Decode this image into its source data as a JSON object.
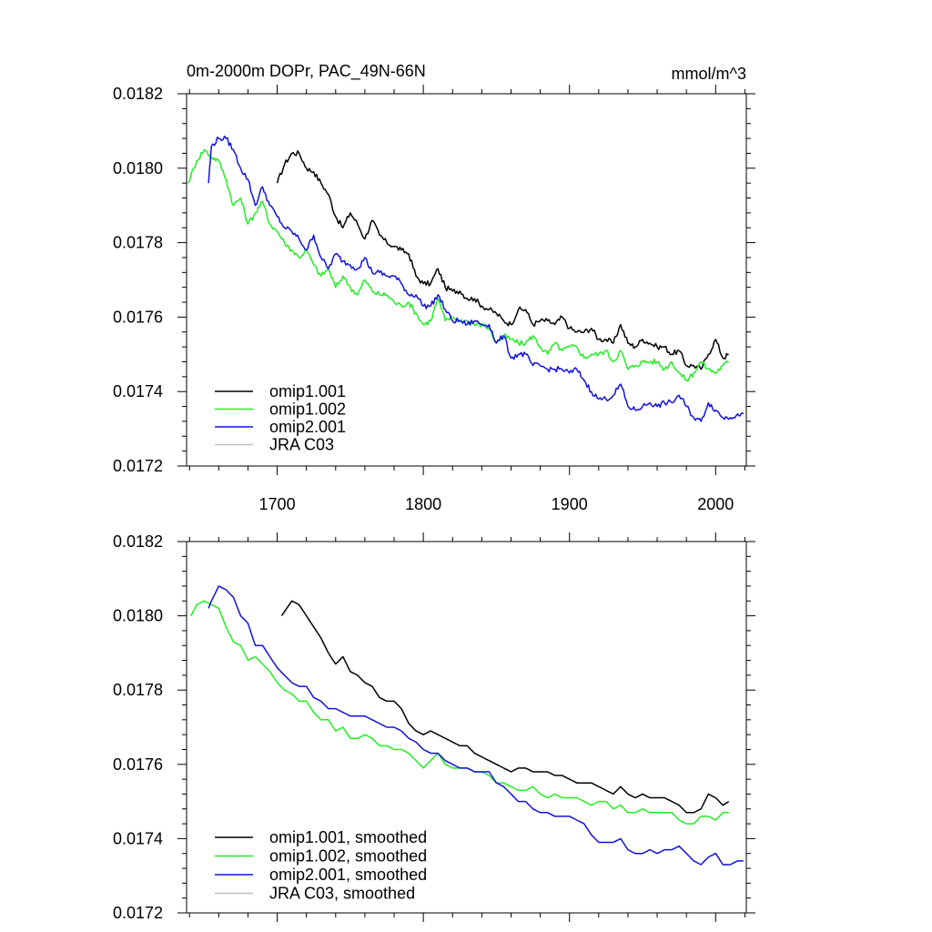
{
  "header": {
    "title": "0m-2000m DOPr, PAC_49N-66N",
    "units": "mmol/m^3"
  },
  "colors": {
    "omip1_001": "#000000",
    "omip1_002": "#22ee22",
    "omip2_001": "#1111dd",
    "jra_c03": "#c0c0c0"
  },
  "chart_data": [
    {
      "type": "line",
      "title": "0m-2000m DOPr, PAC_49N-66N",
      "xlabel": "",
      "ylabel": "",
      "xlim": [
        1638,
        2021
      ],
      "ylim": [
        0.0172,
        0.0182
      ],
      "x_ticks": [
        1700,
        1800,
        1900,
        2000
      ],
      "y_ticks": [
        "0.0172",
        "0.0174",
        "0.0176",
        "0.0178",
        "0.0180",
        "0.0182"
      ],
      "legend_position": "bottom-left",
      "legend": [
        "omip1.001",
        "omip1.002",
        "omip2.001",
        "JRA C03"
      ],
      "series": [
        {
          "name": "omip1.001",
          "color": "#000000",
          "noise": 7.5e-06,
          "x": [
            1700,
            1705,
            1710,
            1715,
            1720,
            1725,
            1730,
            1735,
            1740,
            1745,
            1750,
            1755,
            1760,
            1765,
            1770,
            1775,
            1780,
            1785,
            1790,
            1795,
            1800,
            1805,
            1810,
            1815,
            1820,
            1825,
            1830,
            1835,
            1840,
            1845,
            1850,
            1855,
            1860,
            1865,
            1870,
            1875,
            1880,
            1885,
            1890,
            1895,
            1900,
            1905,
            1910,
            1915,
            1920,
            1925,
            1930,
            1935,
            1940,
            1945,
            1950,
            1955,
            1960,
            1965,
            1970,
            1975,
            1980,
            1985,
            1990,
            1995,
            2000,
            2005,
            2009
          ],
          "y": [
            0.01796,
            0.01801,
            0.01804,
            0.01804,
            0.018,
            0.01799,
            0.01796,
            0.01793,
            0.01787,
            0.01784,
            0.01788,
            0.01785,
            0.01781,
            0.01786,
            0.01782,
            0.0178,
            0.01779,
            0.01778,
            0.01777,
            0.01771,
            0.01769,
            0.01769,
            0.01773,
            0.01768,
            0.01767,
            0.01767,
            0.01765,
            0.01765,
            0.01763,
            0.01762,
            0.01761,
            0.01759,
            0.01758,
            0.01762,
            0.01762,
            0.01758,
            0.01759,
            0.01759,
            0.01758,
            0.0176,
            0.01757,
            0.01756,
            0.01756,
            0.01757,
            0.01754,
            0.01754,
            0.01753,
            0.01758,
            0.01753,
            0.01752,
            0.01754,
            0.01753,
            0.01752,
            0.01752,
            0.0175,
            0.01751,
            0.01747,
            0.01747,
            0.01746,
            0.0175,
            0.01754,
            0.01749,
            0.0175
          ]
        },
        {
          "name": "omip1.002",
          "color": "#22ee22",
          "noise": 7.5e-06,
          "x": [
            1639,
            1645,
            1650,
            1655,
            1660,
            1665,
            1670,
            1675,
            1680,
            1685,
            1690,
            1695,
            1700,
            1705,
            1710,
            1715,
            1720,
            1725,
            1730,
            1735,
            1740,
            1745,
            1750,
            1755,
            1760,
            1765,
            1770,
            1775,
            1780,
            1785,
            1790,
            1795,
            1800,
            1805,
            1810,
            1815,
            1820,
            1825,
            1830,
            1835,
            1840,
            1845,
            1850,
            1855,
            1860,
            1865,
            1870,
            1875,
            1880,
            1885,
            1890,
            1895,
            1900,
            1905,
            1910,
            1915,
            1920,
            1925,
            1930,
            1935,
            1940,
            1945,
            1950,
            1955,
            1960,
            1965,
            1970,
            1975,
            1980,
            1985,
            1990,
            1995,
            2000,
            2005,
            2009
          ],
          "y": [
            0.01796,
            0.01802,
            0.01805,
            0.01803,
            0.01802,
            0.01797,
            0.0179,
            0.01792,
            0.01785,
            0.01788,
            0.01791,
            0.01785,
            0.01783,
            0.0178,
            0.01778,
            0.01776,
            0.01778,
            0.01774,
            0.01771,
            0.01773,
            0.01768,
            0.01771,
            0.01768,
            0.01766,
            0.0177,
            0.01767,
            0.01766,
            0.01766,
            0.01764,
            0.01763,
            0.01764,
            0.01761,
            0.01758,
            0.01759,
            0.01765,
            0.01759,
            0.0176,
            0.01759,
            0.01759,
            0.01758,
            0.01758,
            0.01757,
            0.01753,
            0.01755,
            0.01754,
            0.01753,
            0.01753,
            0.01755,
            0.01752,
            0.0175,
            0.01753,
            0.01751,
            0.01752,
            0.01752,
            0.01749,
            0.0175,
            0.0175,
            0.01751,
            0.01748,
            0.01751,
            0.01746,
            0.01747,
            0.01748,
            0.01748,
            0.01748,
            0.01746,
            0.01748,
            0.01745,
            0.01743,
            0.01745,
            0.01748,
            0.01746,
            0.01745,
            0.01747,
            0.01748
          ]
        },
        {
          "name": "omip2.001",
          "color": "#1111dd",
          "noise": 7.5e-06,
          "x": [
            1653,
            1655,
            1660,
            1665,
            1670,
            1675,
            1680,
            1685,
            1690,
            1695,
            1700,
            1705,
            1710,
            1715,
            1720,
            1725,
            1730,
            1735,
            1740,
            1745,
            1750,
            1755,
            1760,
            1765,
            1770,
            1775,
            1780,
            1785,
            1790,
            1795,
            1800,
            1805,
            1810,
            1815,
            1820,
            1825,
            1830,
            1835,
            1840,
            1845,
            1850,
            1855,
            1860,
            1865,
            1870,
            1875,
            1880,
            1885,
            1890,
            1895,
            1900,
            1905,
            1910,
            1915,
            1920,
            1925,
            1930,
            1935,
            1940,
            1945,
            1950,
            1955,
            1960,
            1965,
            1970,
            1975,
            1980,
            1985,
            1990,
            1995,
            2000,
            2005,
            2010,
            2015,
            2019
          ],
          "y": [
            0.01796,
            0.01806,
            0.01808,
            0.01808,
            0.01805,
            0.018,
            0.01797,
            0.0179,
            0.01795,
            0.0179,
            0.01787,
            0.01784,
            0.01783,
            0.01781,
            0.01778,
            0.01782,
            0.01776,
            0.01773,
            0.01777,
            0.01775,
            0.01774,
            0.01773,
            0.01776,
            0.01772,
            0.01772,
            0.01771,
            0.01771,
            0.01769,
            0.01766,
            0.01766,
            0.01763,
            0.01763,
            0.01766,
            0.01762,
            0.01759,
            0.01759,
            0.01758,
            0.01759,
            0.01758,
            0.01758,
            0.01753,
            0.01755,
            0.01749,
            0.0175,
            0.0175,
            0.01747,
            0.01747,
            0.01746,
            0.01746,
            0.01746,
            0.01745,
            0.01746,
            0.01743,
            0.0174,
            0.01738,
            0.01738,
            0.01739,
            0.01742,
            0.01736,
            0.01735,
            0.01736,
            0.01737,
            0.01736,
            0.01737,
            0.01737,
            0.01739,
            0.01736,
            0.01733,
            0.01732,
            0.01737,
            0.01735,
            0.01733,
            0.01733,
            0.01734,
            0.01734
          ]
        }
      ]
    },
    {
      "type": "line",
      "title": "",
      "xlabel": "",
      "ylabel": "",
      "xlim": [
        1638,
        2021
      ],
      "ylim": [
        0.0172,
        0.0182
      ],
      "x_ticks": [
        1700,
        1800,
        1900,
        2000
      ],
      "y_ticks": [
        "0.0172",
        "0.0174",
        "0.0176",
        "0.0178",
        "0.0180",
        "0.0182"
      ],
      "legend_position": "bottom-left",
      "legend": [
        "omip1.001, smoothed",
        "omip1.002, smoothed",
        "omip2.001, smoothed",
        "JRA C03, smoothed"
      ],
      "series": [
        {
          "name": "omip1.001, smoothed",
          "color": "#000000",
          "noise": 0,
          "x": [
            1703,
            1710,
            1715,
            1720,
            1725,
            1730,
            1735,
            1740,
            1745,
            1750,
            1755,
            1760,
            1765,
            1770,
            1775,
            1780,
            1785,
            1790,
            1795,
            1800,
            1805,
            1810,
            1815,
            1820,
            1825,
            1830,
            1835,
            1840,
            1845,
            1850,
            1855,
            1860,
            1865,
            1870,
            1875,
            1880,
            1885,
            1890,
            1895,
            1900,
            1905,
            1910,
            1915,
            1920,
            1925,
            1930,
            1935,
            1940,
            1945,
            1950,
            1955,
            1960,
            1965,
            1970,
            1975,
            1980,
            1985,
            1990,
            1995,
            2000,
            2005,
            2009
          ],
          "y": [
            0.018,
            0.01804,
            0.01803,
            0.018,
            0.01797,
            0.01794,
            0.0179,
            0.01787,
            0.01789,
            0.01785,
            0.01784,
            0.01782,
            0.01781,
            0.01778,
            0.01777,
            0.01777,
            0.01775,
            0.01771,
            0.01769,
            0.01768,
            0.01769,
            0.01768,
            0.01767,
            0.01766,
            0.01765,
            0.01765,
            0.01763,
            0.01762,
            0.01761,
            0.0176,
            0.01759,
            0.01758,
            0.01759,
            0.01759,
            0.01758,
            0.01758,
            0.01758,
            0.01757,
            0.01757,
            0.01756,
            0.01755,
            0.01755,
            0.01755,
            0.01754,
            0.01753,
            0.01752,
            0.01754,
            0.01752,
            0.01751,
            0.01752,
            0.01751,
            0.01751,
            0.01751,
            0.0175,
            0.01749,
            0.01747,
            0.01747,
            0.01748,
            0.01752,
            0.01751,
            0.01749,
            0.0175
          ]
        },
        {
          "name": "omip1.002, smoothed",
          "color": "#22ee22",
          "noise": 0,
          "x": [
            1641,
            1645,
            1650,
            1655,
            1660,
            1665,
            1670,
            1675,
            1680,
            1685,
            1690,
            1695,
            1700,
            1705,
            1710,
            1715,
            1720,
            1725,
            1730,
            1735,
            1740,
            1745,
            1750,
            1755,
            1760,
            1765,
            1770,
            1775,
            1780,
            1785,
            1790,
            1795,
            1800,
            1805,
            1810,
            1815,
            1820,
            1825,
            1830,
            1835,
            1840,
            1845,
            1850,
            1855,
            1860,
            1865,
            1870,
            1875,
            1880,
            1885,
            1890,
            1895,
            1900,
            1905,
            1910,
            1915,
            1920,
            1925,
            1930,
            1935,
            1940,
            1945,
            1950,
            1955,
            1960,
            1965,
            1970,
            1975,
            1980,
            1985,
            1990,
            1995,
            2000,
            2005,
            2009
          ],
          "y": [
            0.018,
            0.01803,
            0.01804,
            0.01803,
            0.01802,
            0.01797,
            0.01793,
            0.01792,
            0.01788,
            0.01789,
            0.01787,
            0.01785,
            0.01782,
            0.0178,
            0.01779,
            0.01777,
            0.01777,
            0.01774,
            0.01772,
            0.01772,
            0.01769,
            0.0177,
            0.01767,
            0.01767,
            0.01768,
            0.01767,
            0.01765,
            0.01765,
            0.01764,
            0.01764,
            0.01763,
            0.01761,
            0.01759,
            0.01761,
            0.01763,
            0.0176,
            0.01759,
            0.01759,
            0.01759,
            0.01758,
            0.01758,
            0.01757,
            0.01755,
            0.01755,
            0.01754,
            0.01753,
            0.01753,
            0.01754,
            0.01752,
            0.01751,
            0.01752,
            0.01751,
            0.01751,
            0.01751,
            0.0175,
            0.01749,
            0.0175,
            0.0175,
            0.01748,
            0.01749,
            0.01747,
            0.01747,
            0.01748,
            0.01747,
            0.01747,
            0.01747,
            0.01747,
            0.01745,
            0.01744,
            0.01744,
            0.01746,
            0.01746,
            0.01745,
            0.01747,
            0.01747
          ]
        },
        {
          "name": "omip2.001, smoothed",
          "color": "#1111dd",
          "noise": 0,
          "x": [
            1653,
            1655,
            1660,
            1665,
            1670,
            1675,
            1680,
            1685,
            1690,
            1695,
            1700,
            1705,
            1710,
            1715,
            1720,
            1725,
            1730,
            1735,
            1740,
            1745,
            1750,
            1755,
            1760,
            1765,
            1770,
            1775,
            1780,
            1785,
            1790,
            1795,
            1800,
            1805,
            1810,
            1815,
            1820,
            1825,
            1830,
            1835,
            1840,
            1845,
            1850,
            1855,
            1860,
            1865,
            1870,
            1875,
            1880,
            1885,
            1890,
            1895,
            1900,
            1905,
            1910,
            1915,
            1920,
            1925,
            1930,
            1935,
            1940,
            1945,
            1950,
            1955,
            1960,
            1965,
            1970,
            1975,
            1980,
            1985,
            1990,
            1995,
            2000,
            2005,
            2010,
            2015,
            2019
          ],
          "y": [
            0.01802,
            0.01804,
            0.01808,
            0.01807,
            0.01805,
            0.018,
            0.01798,
            0.01792,
            0.01792,
            0.01789,
            0.01786,
            0.01784,
            0.01782,
            0.01781,
            0.01781,
            0.01778,
            0.01777,
            0.01775,
            0.01775,
            0.01774,
            0.01773,
            0.01773,
            0.01773,
            0.01772,
            0.01771,
            0.0177,
            0.0177,
            0.01769,
            0.01767,
            0.01766,
            0.01764,
            0.01763,
            0.01763,
            0.01761,
            0.0176,
            0.01759,
            0.01759,
            0.01758,
            0.01758,
            0.01758,
            0.01755,
            0.01754,
            0.01752,
            0.0175,
            0.0175,
            0.01748,
            0.01747,
            0.01747,
            0.01746,
            0.01746,
            0.01746,
            0.01745,
            0.01744,
            0.01741,
            0.01739,
            0.01739,
            0.01739,
            0.0174,
            0.01737,
            0.01736,
            0.01736,
            0.01737,
            0.01736,
            0.01737,
            0.01737,
            0.01738,
            0.01736,
            0.01734,
            0.01733,
            0.01735,
            0.01736,
            0.01733,
            0.01733,
            0.01734,
            0.01734
          ]
        }
      ]
    }
  ]
}
